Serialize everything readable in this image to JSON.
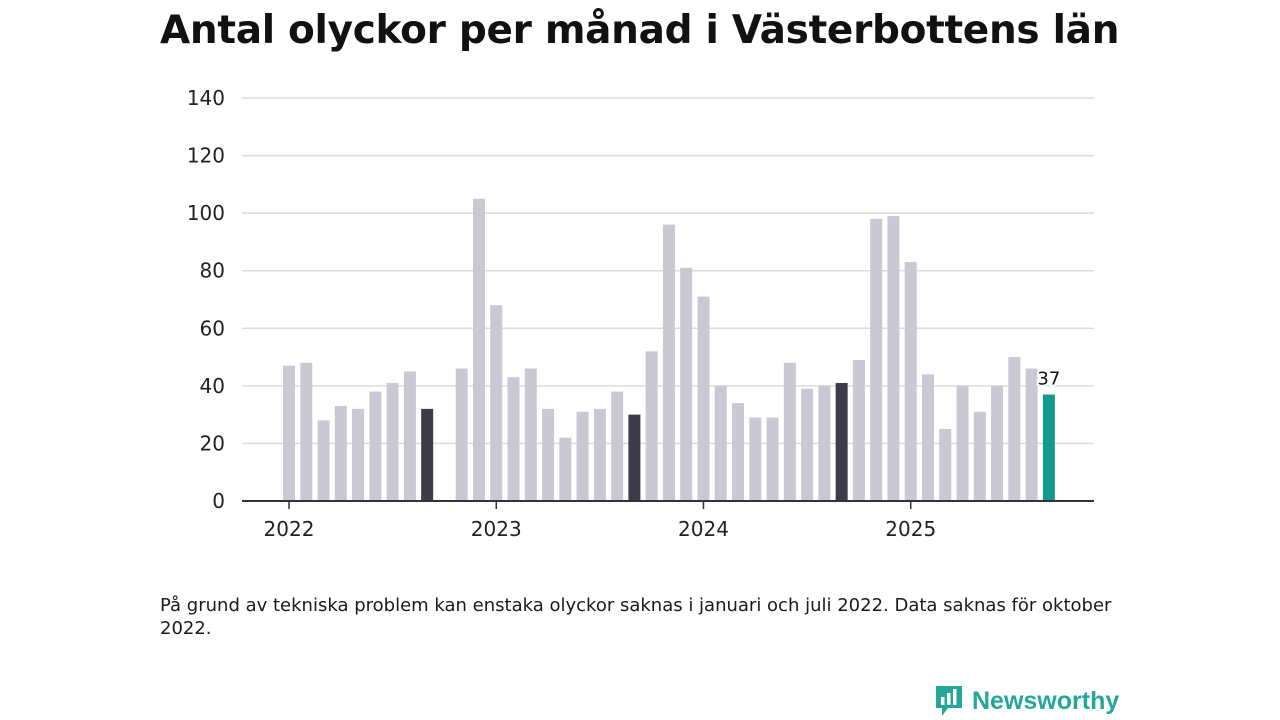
{
  "page": {
    "title": "Antal olyckor per månad i Västerbottens län",
    "footnote": "På grund av tekniska problem kan enstaka olyckor saknas i januari och juli 2022. Data saknas för oktober 2022.",
    "brand": "Newsworthy"
  },
  "colors": {
    "bar_default": "#c9c8d3",
    "bar_september": "#3d3c4a",
    "bar_latest": "#149a8c",
    "gridline": "#dcdcdc",
    "axis": "#333333",
    "brand": "#25a69a"
  },
  "chart_data": {
    "type": "bar",
    "title": "Antal olyckor per månad i Västerbottens län",
    "xlabel": "",
    "ylabel": "",
    "ylim": [
      0,
      140
    ],
    "yticks": [
      0,
      20,
      40,
      60,
      80,
      100,
      120,
      140
    ],
    "xtick_labels": [
      "2022",
      "2023",
      "2024",
      "2025"
    ],
    "grid": true,
    "categories": [
      "2022-01",
      "2022-02",
      "2022-03",
      "2022-04",
      "2022-05",
      "2022-06",
      "2022-07",
      "2022-08",
      "2022-09",
      "2022-10",
      "2022-11",
      "2022-12",
      "2023-01",
      "2023-02",
      "2023-03",
      "2023-04",
      "2023-05",
      "2023-06",
      "2023-07",
      "2023-08",
      "2023-09",
      "2023-10",
      "2023-11",
      "2023-12",
      "2024-01",
      "2024-02",
      "2024-03",
      "2024-04",
      "2024-05",
      "2024-06",
      "2024-07",
      "2024-08",
      "2024-09",
      "2024-10",
      "2024-11",
      "2024-12",
      "2025-01",
      "2025-02",
      "2025-03",
      "2025-04",
      "2025-05",
      "2025-06",
      "2025-07",
      "2025-08",
      "2025-09"
    ],
    "values": [
      47,
      48,
      28,
      33,
      32,
      38,
      41,
      45,
      32,
      null,
      46,
      105,
      68,
      43,
      46,
      32,
      22,
      31,
      32,
      38,
      30,
      52,
      96,
      81,
      71,
      40,
      34,
      29,
      29,
      48,
      39,
      40,
      41,
      49,
      98,
      99,
      83,
      44,
      25,
      40,
      31,
      40,
      50,
      46,
      37
    ],
    "highlight": "september",
    "data_labels": [
      {
        "category": "2025-09",
        "text": "37"
      }
    ]
  }
}
